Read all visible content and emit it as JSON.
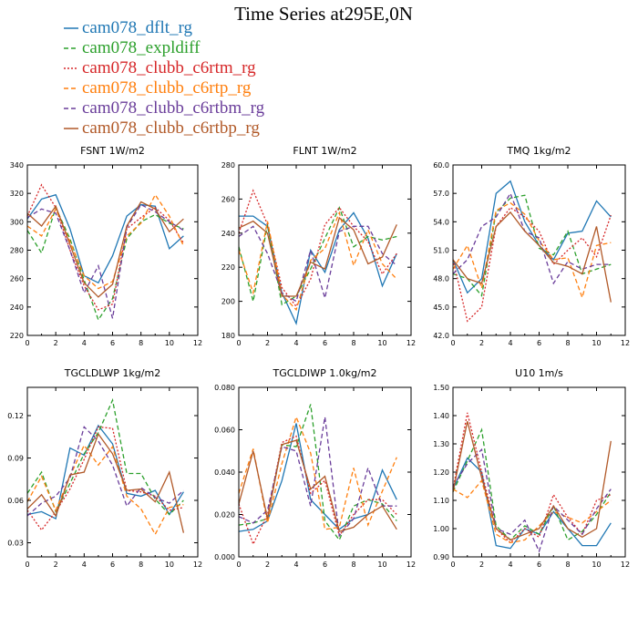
{
  "figure": {
    "title": "Time Series at295E,0N"
  },
  "colors": {
    "cam078_dflt_rg": "#1f77b4",
    "cam078_expldiff": "#2ca02c",
    "cam078_clubb_c6rtm_rg": "#d62728",
    "cam078_clubb_c6rtp_rg": "#ff7f0e",
    "cam078_clubb_c6rtbm_rg": "#6a3d9a",
    "cam078_clubb_c6rtbp_rg": "#b15928"
  },
  "legend": [
    {
      "name": "cam078_dflt_rg",
      "dash": "solid"
    },
    {
      "name": "cam078_expldiff",
      "dash": "dash"
    },
    {
      "name": "cam078_clubb_c6rtm_rg",
      "dash": "dot"
    },
    {
      "name": "cam078_clubb_c6rtp_rg",
      "dash": "dash"
    },
    {
      "name": "cam078_clubb_c6rtbm_rg",
      "dash": "dash"
    },
    {
      "name": "cam078_clubb_c6rtbp_rg",
      "dash": "solid"
    }
  ],
  "chart_data": [
    {
      "type": "line",
      "title": "FSNT   1W/m2",
      "x": [
        0,
        1,
        2,
        3,
        4,
        5,
        6,
        7,
        8,
        9,
        10,
        11
      ],
      "xlim": [
        0,
        12
      ],
      "xticks": [
        0,
        2,
        4,
        6,
        8,
        10,
        12
      ],
      "ylim": [
        220,
        340
      ],
      "yticks": [
        220,
        240,
        260,
        280,
        300,
        320,
        340
      ],
      "ytick_labels": [
        "220",
        "240",
        "260",
        "280",
        "300",
        "320",
        "340"
      ],
      "series": [
        {
          "name": "cam078_dflt_rg",
          "values": [
            302,
            316,
            319,
            295,
            262,
            257,
            276,
            304,
            312,
            311,
            281,
            290
          ]
        },
        {
          "name": "cam078_expldiff",
          "values": [
            294,
            278,
            310,
            288,
            259,
            231,
            246,
            288,
            300,
            305,
            299,
            295
          ]
        },
        {
          "name": "cam078_clubb_c6rtm_rg",
          "values": [
            304,
            326,
            310,
            280,
            255,
            238,
            242,
            295,
            303,
            310,
            301,
            285
          ]
        },
        {
          "name": "cam078_clubb_c6rtp_rg",
          "values": [
            297,
            290,
            309,
            286,
            262,
            253,
            258,
            290,
            299,
            319,
            304,
            283
          ]
        },
        {
          "name": "cam078_clubb_c6rtbm_rg",
          "values": [
            303,
            309,
            306,
            280,
            250,
            269,
            232,
            296,
            312,
            307,
            300,
            294
          ]
        },
        {
          "name": "cam078_clubb_c6rtbp_rg",
          "values": [
            306,
            297,
            311,
            284,
            257,
            247,
            256,
            297,
            314,
            309,
            293,
            302
          ]
        }
      ]
    },
    {
      "type": "line",
      "title": "FLNT   1W/m2",
      "x": [
        0,
        1,
        2,
        3,
        4,
        5,
        6,
        7,
        8,
        9,
        10,
        11
      ],
      "xlim": [
        0,
        12
      ],
      "xticks": [
        0,
        2,
        4,
        6,
        8,
        10,
        12
      ],
      "ylim": [
        180,
        280
      ],
      "yticks": [
        180,
        200,
        220,
        240,
        260,
        280
      ],
      "ytick_labels": [
        "180",
        "200",
        "220",
        "240",
        "260",
        "280"
      ],
      "series": [
        {
          "name": "cam078_dflt_rg",
          "values": [
            250,
            250,
            244,
            205,
            187,
            230,
            217,
            242,
            252,
            237,
            209,
            228
          ]
        },
        {
          "name": "cam078_expldiff",
          "values": [
            232,
            200,
            245,
            198,
            203,
            219,
            237,
            255,
            232,
            238,
            236,
            238
          ]
        },
        {
          "name": "cam078_clubb_c6rtm_rg",
          "values": [
            240,
            265,
            245,
            208,
            197,
            213,
            245,
            255,
            244,
            235,
            216,
            228
          ]
        },
        {
          "name": "cam078_clubb_c6rtp_rg",
          "values": [
            230,
            205,
            247,
            204,
            195,
            224,
            231,
            252,
            221,
            242,
            222,
            213
          ]
        },
        {
          "name": "cam078_clubb_c6rtbm_rg",
          "values": [
            238,
            244,
            228,
            205,
            200,
            230,
            202,
            241,
            244,
            244,
            228,
            221
          ]
        },
        {
          "name": "cam078_clubb_c6rtbp_rg",
          "values": [
            243,
            247,
            240,
            203,
            203,
            223,
            219,
            249,
            242,
            222,
            226,
            245
          ]
        }
      ]
    },
    {
      "type": "line",
      "title": "TMQ   1kg/m2",
      "x": [
        0,
        1,
        2,
        3,
        4,
        5,
        6,
        7,
        8,
        9,
        10,
        11
      ],
      "xlim": [
        0,
        12
      ],
      "xticks": [
        0,
        2,
        4,
        6,
        8,
        10,
        12
      ],
      "ylim": [
        42.0,
        60.0
      ],
      "yticks": [
        42,
        45,
        48,
        51,
        54,
        57,
        60
      ],
      "ytick_labels": [
        "42.0",
        "45.0",
        "48.0",
        "51.0",
        "54.0",
        "57.0",
        "60.0"
      ],
      "series": [
        {
          "name": "cam078_dflt_rg",
          "values": [
            50.0,
            46.5,
            48.0,
            57.0,
            58.3,
            54.0,
            51.5,
            50.0,
            52.8,
            53.0,
            56.2,
            54.5
          ]
        },
        {
          "name": "cam078_expldiff",
          "values": [
            48.5,
            48.0,
            46.2,
            55.0,
            56.5,
            56.8,
            51.2,
            50.5,
            53.0,
            48.5,
            49.0,
            49.5
          ]
        },
        {
          "name": "cam078_clubb_c6rtm_rg",
          "values": [
            50.0,
            43.5,
            45.0,
            53.5,
            55.5,
            54.5,
            53.0,
            49.5,
            51.0,
            52.3,
            50.3,
            54.7
          ]
        },
        {
          "name": "cam078_clubb_c6rtp_rg",
          "values": [
            49.0,
            51.5,
            47.0,
            55.2,
            56.0,
            54.8,
            52.0,
            50.0,
            50.2,
            46.0,
            51.5,
            51.8
          ]
        },
        {
          "name": "cam078_clubb_c6rtbm_rg",
          "values": [
            48.5,
            50.0,
            53.5,
            54.5,
            57.0,
            53.0,
            52.3,
            47.5,
            49.8,
            49.0,
            49.5,
            49.5
          ]
        },
        {
          "name": "cam078_clubb_c6rtbp_rg",
          "values": [
            50.0,
            48.0,
            47.5,
            53.5,
            55.0,
            53.0,
            51.5,
            49.7,
            49.3,
            48.5,
            53.5,
            45.5
          ]
        }
      ]
    },
    {
      "type": "line",
      "title": "TGCLDLWP   1kg/m2",
      "x": [
        0,
        1,
        2,
        3,
        4,
        5,
        6,
        7,
        8,
        9,
        10,
        11
      ],
      "xlim": [
        0,
        12
      ],
      "xticks": [
        0,
        2,
        4,
        6,
        8,
        10,
        12
      ],
      "ylim": [
        0.02,
        0.14
      ],
      "yticks": [
        0.03,
        0.06,
        0.09,
        0.12
      ],
      "ytick_labels": [
        "0.03",
        "0.06",
        "0.09",
        "0.12"
      ],
      "series": [
        {
          "name": "cam078_dflt_rg",
          "values": [
            0.05,
            0.052,
            0.047,
            0.097,
            0.092,
            0.113,
            0.1,
            0.065,
            0.063,
            0.067,
            0.05,
            0.066
          ]
        },
        {
          "name": "cam078_expldiff",
          "values": [
            0.065,
            0.08,
            0.052,
            0.072,
            0.093,
            0.108,
            0.131,
            0.079,
            0.079,
            0.061,
            0.05,
            0.06
          ]
        },
        {
          "name": "cam078_clubb_c6rtm_rg",
          "values": [
            0.053,
            0.039,
            0.052,
            0.068,
            0.089,
            0.112,
            0.111,
            0.067,
            0.066,
            0.063,
            0.053,
            0.055
          ]
        },
        {
          "name": "cam078_clubb_c6rtp_rg",
          "values": [
            0.059,
            0.077,
            0.053,
            0.077,
            0.099,
            0.085,
            0.098,
            0.063,
            0.054,
            0.036,
            0.055,
            0.057
          ]
        },
        {
          "name": "cam078_clubb_c6rtbm_rg",
          "values": [
            0.049,
            0.058,
            0.063,
            0.076,
            0.112,
            0.102,
            0.085,
            0.056,
            0.069,
            0.062,
            0.058,
            0.067
          ]
        },
        {
          "name": "cam078_clubb_c6rtbp_rg",
          "values": [
            0.054,
            0.064,
            0.049,
            0.078,
            0.08,
            0.107,
            0.093,
            0.067,
            0.068,
            0.059,
            0.08,
            0.037
          ]
        }
      ]
    },
    {
      "type": "line",
      "title": "TGCLDIWP   1.0kg/m2",
      "x": [
        0,
        1,
        2,
        3,
        4,
        5,
        6,
        7,
        8,
        9,
        10,
        11
      ],
      "xlim": [
        0,
        12
      ],
      "xticks": [
        0,
        2,
        4,
        6,
        8,
        10,
        12
      ],
      "ylim": [
        0.0,
        0.08
      ],
      "yticks": [
        0.0,
        0.02,
        0.04,
        0.06,
        0.08
      ],
      "ytick_labels": [
        "0.000",
        "0.020",
        "0.040",
        "0.060",
        "0.080"
      ],
      "series": [
        {
          "name": "cam078_dflt_rg",
          "values": [
            0.012,
            0.013,
            0.017,
            0.036,
            0.063,
            0.027,
            0.02,
            0.013,
            0.018,
            0.02,
            0.041,
            0.027
          ]
        },
        {
          "name": "cam078_expldiff",
          "values": [
            0.015,
            0.016,
            0.018,
            0.053,
            0.052,
            0.072,
            0.017,
            0.008,
            0.024,
            0.027,
            0.025,
            0.017
          ]
        },
        {
          "name": "cam078_clubb_c6rtm_rg",
          "values": [
            0.025,
            0.006,
            0.02,
            0.054,
            0.057,
            0.03,
            0.036,
            0.01,
            0.02,
            0.027,
            0.027,
            0.02
          ]
        },
        {
          "name": "cam078_clubb_c6rtp_rg",
          "values": [
            0.03,
            0.051,
            0.016,
            0.044,
            0.066,
            0.049,
            0.013,
            0.014,
            0.042,
            0.015,
            0.031,
            0.047
          ]
        },
        {
          "name": "cam078_clubb_c6rtbm_rg",
          "values": [
            0.019,
            0.016,
            0.022,
            0.052,
            0.05,
            0.024,
            0.066,
            0.01,
            0.018,
            0.042,
            0.024,
            0.024
          ]
        },
        {
          "name": "cam078_clubb_c6rtbp_rg",
          "values": [
            0.025,
            0.05,
            0.018,
            0.053,
            0.055,
            0.032,
            0.038,
            0.012,
            0.014,
            0.02,
            0.024,
            0.013
          ]
        }
      ]
    },
    {
      "type": "line",
      "title": "U10   1m/s",
      "x": [
        0,
        1,
        2,
        3,
        4,
        5,
        6,
        7,
        8,
        9,
        10,
        11
      ],
      "xlim": [
        0,
        12
      ],
      "xticks": [
        0,
        2,
        4,
        6,
        8,
        10,
        12
      ],
      "ylim": [
        0.9,
        1.5
      ],
      "yticks": [
        0.9,
        1.0,
        1.1,
        1.2,
        1.3,
        1.4,
        1.5
      ],
      "ytick_labels": [
        "0.90",
        "1.00",
        "1.10",
        "1.20",
        "1.30",
        "1.40",
        "1.50"
      ],
      "series": [
        {
          "name": "cam078_dflt_rg",
          "values": [
            1.14,
            1.25,
            1.2,
            0.94,
            0.93,
            1.0,
            0.98,
            1.06,
            1.0,
            0.94,
            0.94,
            1.02
          ]
        },
        {
          "name": "cam078_expldiff",
          "values": [
            1.13,
            1.24,
            1.35,
            1.01,
            0.96,
            1.01,
            0.98,
            1.08,
            0.96,
            0.99,
            1.05,
            1.13
          ]
        },
        {
          "name": "cam078_clubb_c6rtm_rg",
          "values": [
            1.14,
            1.41,
            1.2,
            1.0,
            0.95,
            1.0,
            0.97,
            1.12,
            1.04,
            0.98,
            1.1,
            1.12
          ]
        },
        {
          "name": "cam078_clubb_c6rtp_rg",
          "values": [
            1.14,
            1.11,
            1.17,
            0.98,
            0.95,
            0.96,
            1.01,
            1.06,
            1.04,
            1.02,
            1.06,
            1.1
          ]
        },
        {
          "name": "cam078_clubb_c6rtbm_rg",
          "values": [
            1.15,
            1.23,
            1.28,
            1.0,
            0.98,
            1.03,
            0.92,
            1.08,
            1.03,
            0.98,
            1.07,
            1.14
          ]
        },
        {
          "name": "cam078_clubb_c6rtbp_rg",
          "values": [
            1.13,
            1.38,
            1.18,
            1.0,
            0.96,
            0.98,
            1.0,
            1.08,
            1.0,
            0.97,
            1.0,
            1.31
          ]
        }
      ]
    }
  ]
}
